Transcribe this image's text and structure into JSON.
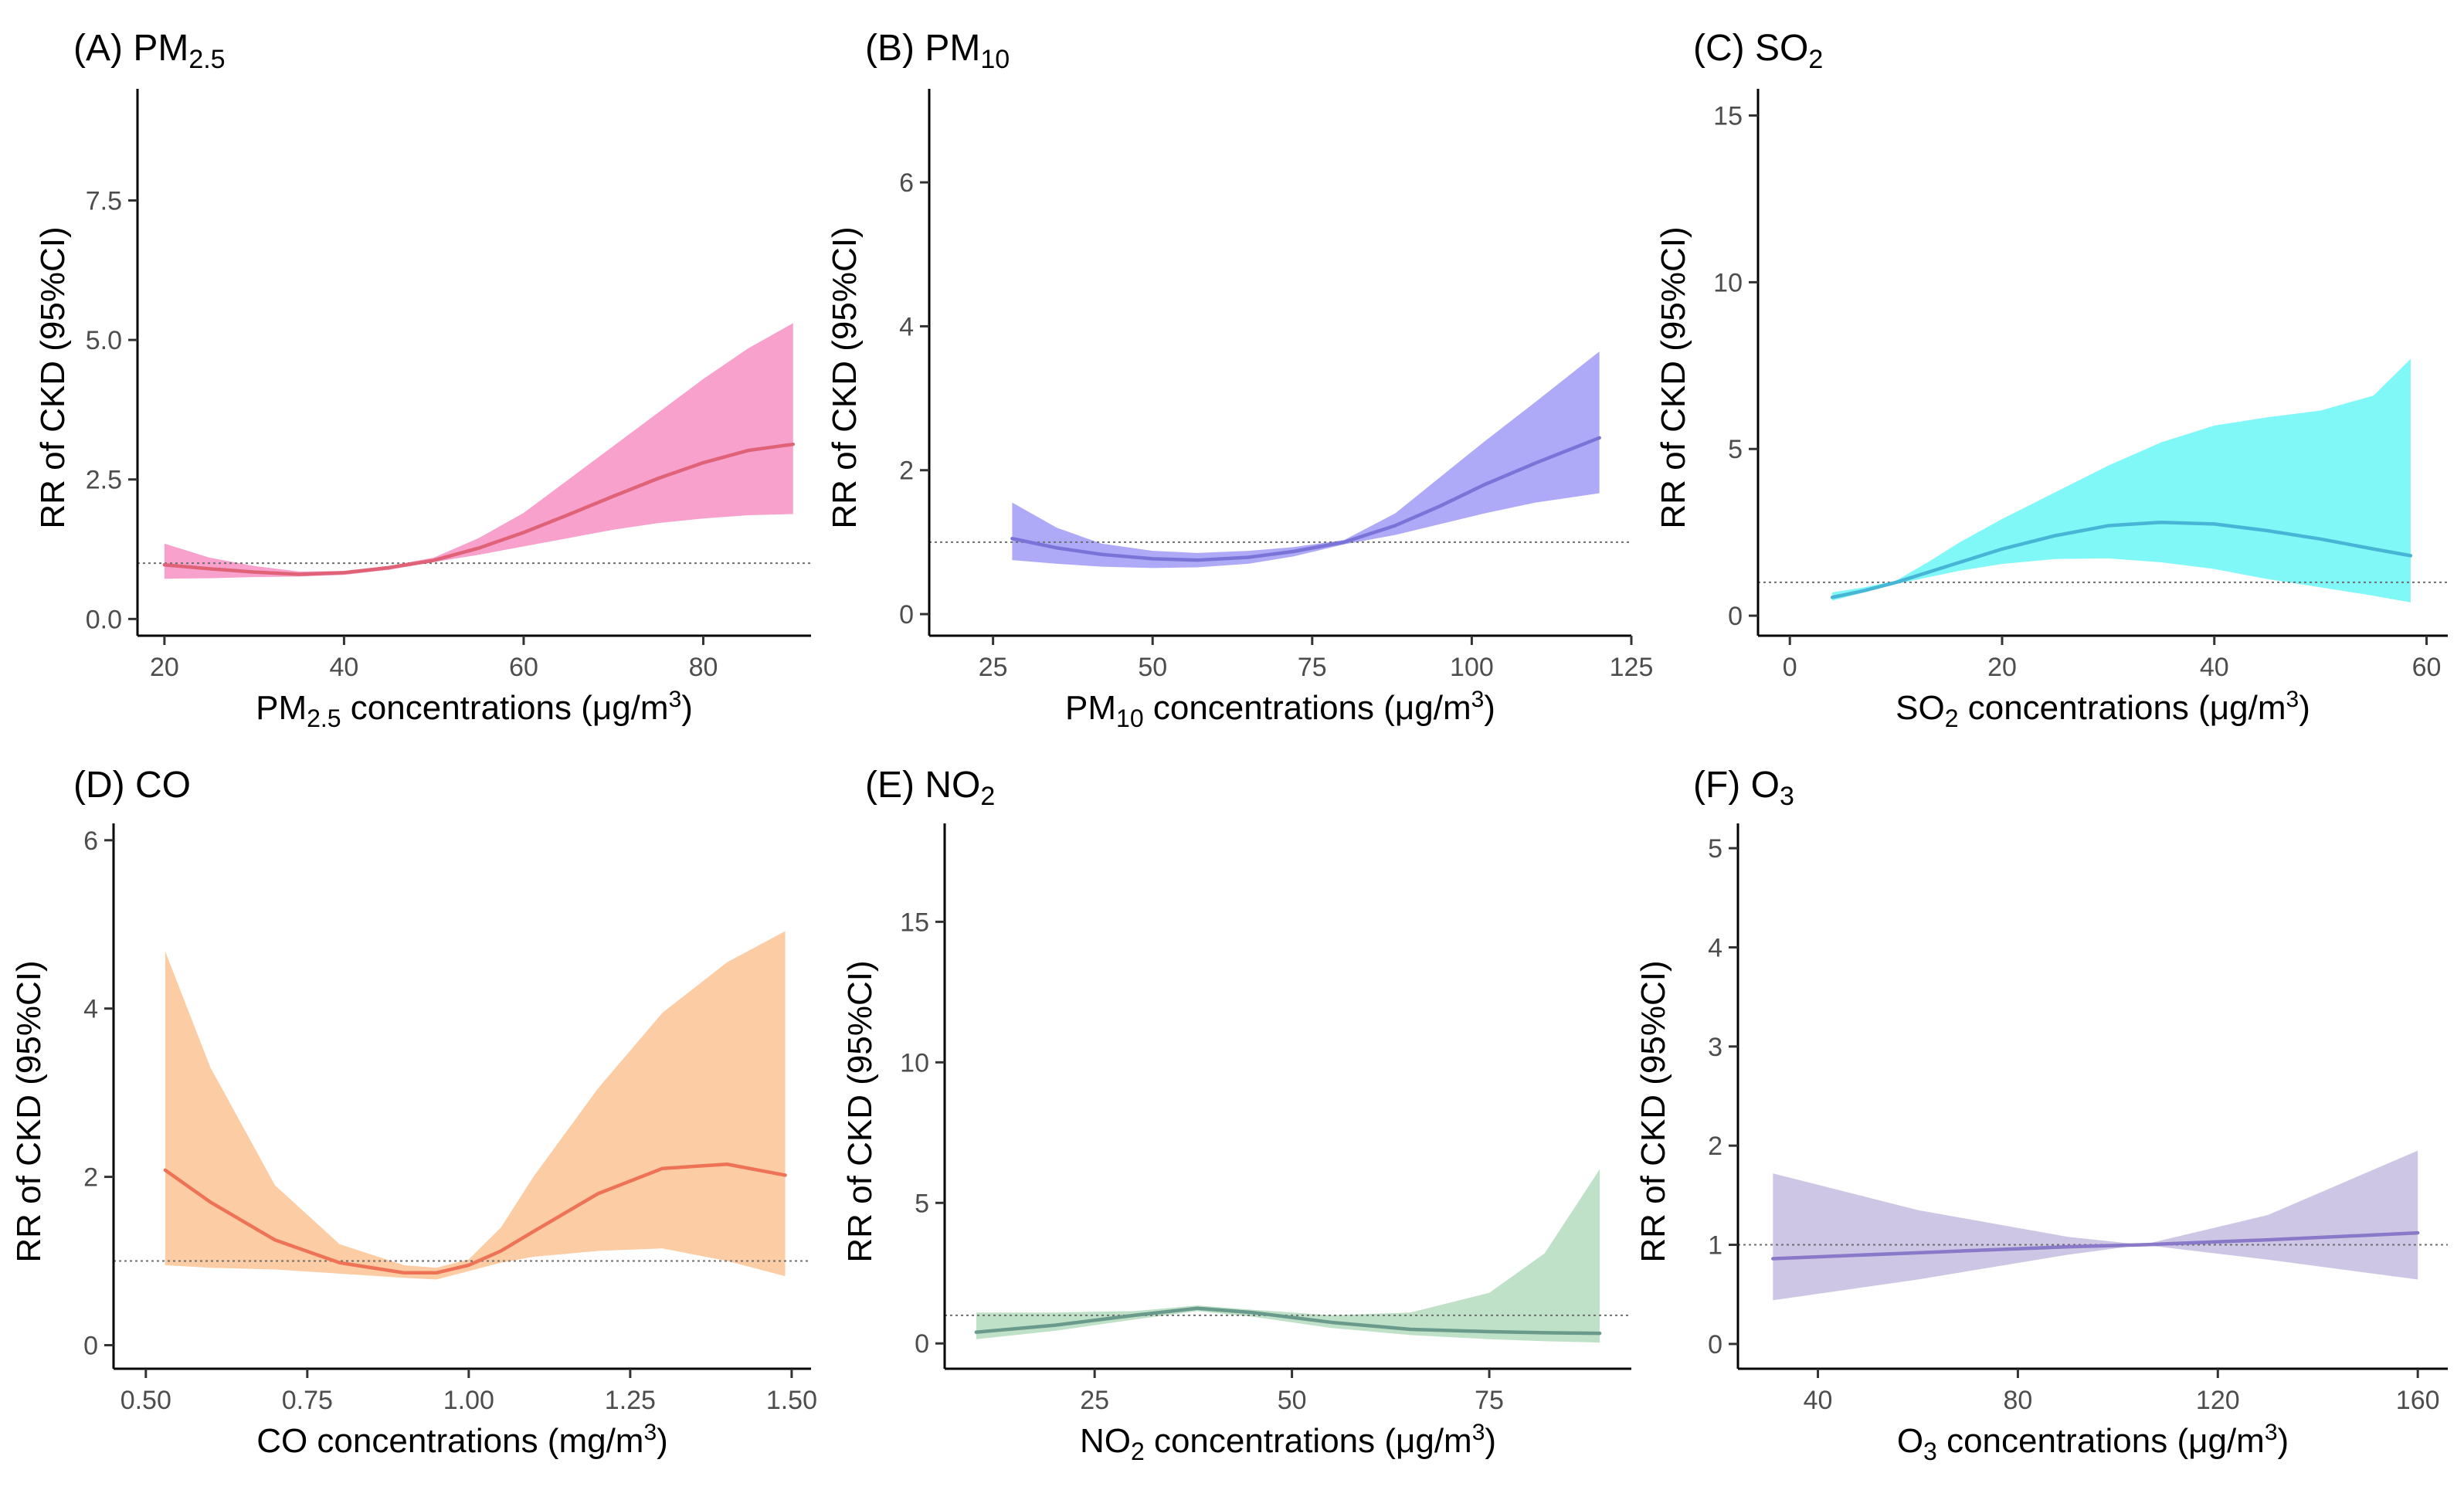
{
  "ref_y": 1,
  "y_axis_label": "RR of CKD (95%CI)",
  "chart_data": [
    {
      "type": "line",
      "panel_label": "(A) PM",
      "panel_sub": "2.5",
      "xlabel_pre": "PM",
      "xlabel_sub": "2.5",
      "xlabel_mid": " concentrations (μg/m",
      "xlabel_sup": "3",
      "xlabel_post": ")",
      "xlim": [
        17,
        92
      ],
      "ylim": [
        -0.3,
        9.5
      ],
      "xticks": [
        20,
        40,
        60,
        80
      ],
      "xtick_labels": [
        "20",
        "40",
        "60",
        "80"
      ],
      "yticks": [
        0,
        2.5,
        5,
        7.5
      ],
      "ytick_labels": [
        "0.0",
        "2.5",
        "5.0",
        "7.5"
      ],
      "color_fill": "#f7a1cc",
      "color_line": "#e06276",
      "x": [
        20,
        25,
        30,
        35,
        40,
        45,
        50,
        55,
        60,
        65,
        70,
        75,
        80,
        85,
        90
      ],
      "y": [
        0.97,
        0.9,
        0.84,
        0.8,
        0.83,
        0.92,
        1.05,
        1.27,
        1.55,
        1.87,
        2.2,
        2.52,
        2.8,
        3.02,
        3.13
      ],
      "lower": [
        0.72,
        0.73,
        0.75,
        0.76,
        0.79,
        0.88,
        1.02,
        1.15,
        1.3,
        1.45,
        1.6,
        1.72,
        1.8,
        1.86,
        1.88
      ],
      "upper": [
        1.35,
        1.1,
        0.95,
        0.85,
        0.86,
        0.95,
        1.1,
        1.45,
        1.9,
        2.5,
        3.1,
        3.7,
        4.3,
        4.85,
        5.3
      ]
    },
    {
      "type": "line",
      "panel_label": "(B) PM",
      "panel_sub": "10",
      "xlabel_pre": "PM",
      "xlabel_sub": "10",
      "xlabel_mid": " concentrations (μg/m",
      "xlabel_sup": "3",
      "xlabel_post": ")",
      "xlim": [
        15,
        125
      ],
      "ylim": [
        -0.3,
        7.3
      ],
      "xticks": [
        25,
        50,
        75,
        100,
        125
      ],
      "xtick_labels": [
        "25",
        "50",
        "75",
        "100",
        "125"
      ],
      "yticks": [
        0,
        2,
        4,
        6
      ],
      "ytick_labels": [
        "0",
        "2",
        "4",
        "6"
      ],
      "color_fill": "#aeaaf8",
      "color_line": "#7b74d8",
      "x": [
        28,
        35,
        42,
        50,
        57,
        65,
        72,
        80,
        88,
        95,
        102,
        110,
        120
      ],
      "y": [
        1.05,
        0.92,
        0.83,
        0.77,
        0.75,
        0.79,
        0.87,
        1.0,
        1.23,
        1.5,
        1.8,
        2.1,
        2.45
      ],
      "lower": [
        0.75,
        0.7,
        0.66,
        0.64,
        0.65,
        0.7,
        0.8,
        0.97,
        1.1,
        1.25,
        1.4,
        1.55,
        1.68
      ],
      "upper": [
        1.55,
        1.2,
        0.98,
        0.88,
        0.85,
        0.88,
        0.93,
        1.03,
        1.4,
        1.9,
        2.4,
        2.95,
        3.65
      ]
    },
    {
      "type": "line",
      "panel_label": "(C) SO",
      "panel_sub": "2",
      "xlabel_pre": "SO",
      "xlabel_sub": "2",
      "xlabel_mid": " concentrations (μg/m",
      "xlabel_sup": "3",
      "xlabel_post": ")",
      "xlim": [
        -3,
        62
      ],
      "ylim": [
        -0.6,
        15.8
      ],
      "xticks": [
        0,
        20,
        40,
        60
      ],
      "xtick_labels": [
        "0",
        "20",
        "40",
        "60"
      ],
      "yticks": [
        0,
        5,
        10,
        15
      ],
      "ytick_labels": [
        "0",
        "5",
        "10",
        "15"
      ],
      "color_fill": "#80f8f7",
      "color_line": "#47b6d6",
      "x": [
        4,
        7,
        10,
        13,
        16,
        20,
        25,
        30,
        35,
        40,
        45,
        50,
        55,
        58.5
      ],
      "y": [
        0.55,
        0.75,
        1.0,
        1.3,
        1.6,
        2.0,
        2.4,
        2.7,
        2.8,
        2.75,
        2.55,
        2.3,
        2.0,
        1.8
      ],
      "lower": [
        0.45,
        0.7,
        0.95,
        1.15,
        1.35,
        1.55,
        1.7,
        1.72,
        1.6,
        1.4,
        1.1,
        0.85,
        0.6,
        0.4
      ],
      "upper": [
        0.7,
        0.85,
        1.05,
        1.6,
        2.2,
        2.9,
        3.7,
        4.5,
        5.2,
        5.7,
        5.95,
        6.15,
        6.6,
        7.7
      ]
    },
    {
      "type": "line",
      "panel_label": "(D) CO",
      "panel_sub": "",
      "xlabel_pre": "CO concentrations (mg/m",
      "xlabel_sub": "",
      "xlabel_mid": "",
      "xlabel_sup": "3",
      "xlabel_post": ")",
      "xlim": [
        0.45,
        1.53
      ],
      "ylim": [
        -0.28,
        6.2
      ],
      "xticks": [
        0.5,
        0.75,
        1.0,
        1.25,
        1.5
      ],
      "xtick_labels": [
        "0.50",
        "0.75",
        "1.00",
        "1.25",
        "1.50"
      ],
      "yticks": [
        0,
        2,
        4,
        6
      ],
      "ytick_labels": [
        "0",
        "2",
        "4",
        "6"
      ],
      "color_fill": "#fccda4",
      "color_line": "#ee7255",
      "x": [
        0.53,
        0.6,
        0.7,
        0.8,
        0.9,
        0.95,
        1.0,
        1.05,
        1.1,
        1.2,
        1.3,
        1.4,
        1.49
      ],
      "y": [
        2.08,
        1.7,
        1.25,
        0.98,
        0.86,
        0.86,
        0.95,
        1.12,
        1.35,
        1.8,
        2.1,
        2.15,
        2.02
      ],
      "lower": [
        0.95,
        0.92,
        0.9,
        0.85,
        0.8,
        0.78,
        0.88,
        0.98,
        1.05,
        1.12,
        1.15,
        1.0,
        0.82
      ],
      "upper": [
        4.68,
        3.3,
        1.9,
        1.2,
        0.95,
        0.92,
        1.02,
        1.4,
        2.0,
        3.05,
        3.95,
        4.55,
        4.92
      ]
    },
    {
      "type": "line",
      "panel_label": "(E) NO",
      "panel_sub": "2",
      "xlabel_pre": "NO",
      "xlabel_sub": "2",
      "xlabel_mid": " concentrations (μg/m",
      "xlabel_sup": "3",
      "xlabel_post": ")",
      "xlim": [
        6,
        93
      ],
      "ylim": [
        -0.9,
        18.5
      ],
      "xticks": [
        25,
        50,
        75
      ],
      "xtick_labels": [
        "25",
        "50",
        "75"
      ],
      "yticks": [
        0,
        5,
        10,
        15
      ],
      "ytick_labels": [
        "0",
        "5",
        "10",
        "15"
      ],
      "color_fill": "#bfe1c7",
      "color_line": "#6a9a8c",
      "x": [
        10,
        20,
        30,
        38,
        45,
        55,
        65,
        75,
        82,
        89
      ],
      "y": [
        0.4,
        0.65,
        1.0,
        1.25,
        1.1,
        0.75,
        0.5,
        0.42,
        0.38,
        0.36
      ],
      "lower": [
        0.15,
        0.45,
        0.85,
        1.15,
        0.95,
        0.55,
        0.3,
        0.15,
        0.08,
        0.03
      ],
      "upper": [
        1.1,
        1.1,
        1.15,
        1.35,
        1.2,
        1.0,
        1.1,
        1.8,
        3.2,
        6.2
      ]
    },
    {
      "type": "line",
      "panel_label": "(F) O",
      "panel_sub": "3",
      "xlabel_pre": "O",
      "xlabel_sub": "3",
      "xlabel_mid": " concentrations (μg/m",
      "xlabel_sup": "3",
      "xlabel_post": ")",
      "xlim": [
        24,
        166
      ],
      "ylim": [
        -0.25,
        5.25
      ],
      "xticks": [
        40,
        80,
        120,
        160
      ],
      "xtick_labels": [
        "40",
        "80",
        "120",
        "160"
      ],
      "yticks": [
        0,
        1,
        2,
        3,
        4,
        5
      ],
      "ytick_labels": [
        "0",
        "1",
        "2",
        "3",
        "4",
        "5"
      ],
      "color_fill": "#cdc6e4",
      "color_line": "#8a79c8",
      "x": [
        31,
        60,
        90,
        105,
        130,
        160
      ],
      "y": [
        0.86,
        0.92,
        0.98,
        1.0,
        1.05,
        1.12
      ],
      "lower": [
        0.44,
        0.65,
        0.9,
        1.0,
        0.85,
        0.65
      ],
      "upper": [
        1.72,
        1.35,
        1.08,
        1.0,
        1.3,
        1.95
      ]
    }
  ]
}
